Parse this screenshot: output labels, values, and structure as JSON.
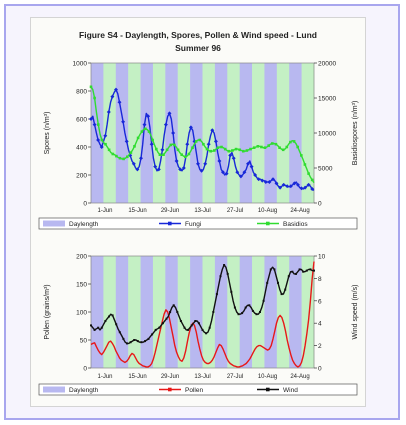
{
  "figure": {
    "title_line1": "Figure S4 - Daylength, Spores, Pollen & Wind speed - Lund",
    "title_line2": "Summer 96"
  },
  "colors": {
    "frame_border": "#a8a6ee",
    "band_purple": "#b8b8f0",
    "band_green": "#c4f0c4",
    "blue": "#1828d8",
    "green": "#30dc30",
    "red": "#e81818",
    "black": "#111111"
  },
  "chart_data": [
    {
      "type": "line",
      "title": "",
      "ylabel": "Spores (n/m³)",
      "y2label": "Basidiospores (n/m³)",
      "ylim": [
        0,
        1000
      ],
      "y2lim": [
        0,
        20000
      ],
      "yticks": [
        "0",
        "200",
        "400",
        "600",
        "800",
        "1000"
      ],
      "y2ticks": [
        "0",
        "5000",
        "10000",
        "15000",
        "20000"
      ],
      "xticks": [
        "1-Jun",
        "15-Jun",
        "29-Jun",
        "13-Jul",
        "27-Jul",
        "10-Aug",
        "24-Aug"
      ],
      "legend": [
        "Daylength",
        "Fungi",
        "Basidios"
      ],
      "legend_position": "bottom",
      "bands": [
        "purple",
        "green",
        "purple",
        "green",
        "purple",
        "green",
        "purple",
        "green",
        "purple",
        "green",
        "purple",
        "green",
        "purple",
        "green",
        "purple",
        "green",
        "purple",
        "green"
      ],
      "series": [
        {
          "name": "Fungi",
          "axis": "left",
          "color": "#1828d8",
          "marker": "diamond",
          "values": [
            600,
            620,
            560,
            500,
            450,
            420,
            400,
            440,
            480,
            560,
            650,
            720,
            760,
            790,
            810,
            780,
            720,
            650,
            580,
            500,
            440,
            380,
            340,
            300,
            280,
            250,
            240,
            260,
            320,
            420,
            560,
            640,
            620,
            540,
            420,
            320,
            260,
            230,
            240,
            300,
            380,
            480,
            560,
            620,
            640,
            600,
            500,
            380,
            300,
            260,
            240,
            230,
            250,
            320,
            420,
            500,
            540,
            520,
            440,
            360,
            280,
            240,
            230,
            240,
            280,
            340,
            420,
            480,
            520,
            500,
            440,
            360,
            300,
            240,
            220,
            200,
            210,
            260,
            340,
            360,
            320,
            260,
            220,
            200,
            190,
            200,
            220,
            240,
            280,
            300,
            260,
            220,
            200,
            180,
            170,
            170,
            160,
            160,
            150,
            150,
            150,
            160,
            170,
            160,
            140,
            120,
            110,
            120,
            130,
            125,
            120,
            115,
            120,
            130,
            140,
            150,
            130,
            110,
            105,
            100,
            110,
            120,
            130,
            120,
            100,
            90
          ]
        },
        {
          "name": "Basidios",
          "axis": "right",
          "color": "#30dc30",
          "marker": "square",
          "values": [
            16600,
            16200,
            15000,
            13000,
            11200,
            9800,
            9000,
            8600,
            8400,
            8000,
            7600,
            7200,
            7000,
            6900,
            6700,
            6500,
            6400,
            6300,
            6300,
            6400,
            6600,
            6900,
            7200,
            7600,
            8100,
            8700,
            9300,
            9800,
            10200,
            10500,
            10600,
            10500,
            10200,
            9700,
            9000,
            8300,
            7700,
            7200,
            6900,
            6800,
            6900,
            7200,
            7600,
            8000,
            8300,
            8400,
            8300,
            8000,
            7600,
            7200,
            6900,
            6700,
            6600,
            6700,
            7000,
            7400,
            7900,
            8400,
            8800,
            9000,
            9000,
            8800,
            8400,
            8000,
            7700,
            7500,
            7400,
            7400,
            7500,
            7700,
            7900,
            8000,
            8000,
            7900,
            7700,
            7500,
            7400,
            7400,
            7500,
            7600,
            7700,
            7700,
            7600,
            7500,
            7400,
            7400,
            7500,
            7600,
            7700,
            7800,
            7900,
            8000,
            8100,
            8100,
            8000,
            7900,
            7900,
            8000,
            8200,
            8400,
            8500,
            8500,
            8400,
            8200,
            7900,
            7700,
            7600,
            7700,
            8000,
            8400,
            8700,
            8900,
            8800,
            8500,
            8000,
            7400,
            6800,
            6200,
            5500,
            4900,
            4200,
            3700,
            3300,
            2900
          ]
        }
      ]
    },
    {
      "type": "line",
      "title": "",
      "ylabel": "Pollen (grains/m³)",
      "y2label": "Wind speed (m/s)",
      "ylim": [
        0,
        200
      ],
      "y2lim": [
        0,
        10
      ],
      "yticks": [
        "0",
        "50",
        "100",
        "150",
        "200"
      ],
      "y2ticks": [
        "0",
        "2",
        "4",
        "6",
        "8",
        "10"
      ],
      "xticks": [
        "1-Jun",
        "15-Jun",
        "29-Jun",
        "13-Jul",
        "27-Jul",
        "10-Aug",
        "24-Aug"
      ],
      "legend": [
        "Daylength",
        "Pollen",
        "Wind"
      ],
      "legend_position": "bottom",
      "series": [
        {
          "name": "Pollen",
          "axis": "left",
          "color": "#e81818",
          "values": [
            42,
            44,
            45,
            38,
            32,
            27,
            24,
            28,
            34,
            40,
            46,
            48,
            44,
            38,
            30,
            24,
            18,
            14,
            12,
            10,
            12,
            16,
            22,
            26,
            24,
            18,
            12,
            8,
            6,
            4,
            3,
            2,
            2,
            4,
            8,
            16,
            28,
            42,
            56,
            70,
            84,
            96,
            104,
            100,
            88,
            72,
            56,
            40,
            28,
            20,
            14,
            12,
            18,
            30,
            46,
            62,
            74,
            80,
            76,
            64,
            48,
            34,
            22,
            14,
            10,
            8,
            8,
            10,
            14,
            20,
            28,
            36,
            42,
            40,
            34,
            26,
            18,
            12,
            8,
            6,
            4,
            3,
            2,
            2,
            3,
            4,
            6,
            8,
            12,
            16,
            22,
            28,
            34,
            38,
            40,
            40,
            38,
            36,
            34,
            32,
            34,
            40,
            52,
            66,
            80,
            90,
            94,
            90,
            80,
            66,
            50,
            36,
            24,
            14,
            8,
            4,
            2,
            4,
            10,
            22,
            40,
            62,
            86,
            120,
            160,
            190
          ]
        },
        {
          "name": "Wind",
          "axis": "right",
          "color": "#111111",
          "marker": "small",
          "values": [
            3.8,
            3.6,
            3.4,
            3.5,
            3.6,
            3.4,
            3.6,
            3.9,
            4.2,
            4.4,
            4.6,
            4.8,
            4.7,
            4.3,
            3.9,
            3.5,
            3.2,
            2.9,
            2.6,
            2.3,
            2.2,
            2.2,
            2.3,
            2.4,
            2.5,
            2.5,
            2.4,
            2.3,
            2.3,
            2.3,
            2.4,
            2.5,
            2.6,
            2.8,
            3.0,
            3.2,
            3.4,
            3.5,
            3.6,
            3.8,
            4.0,
            4.2,
            4.4,
            4.6,
            5.0,
            5.4,
            5.6,
            5.4,
            5.0,
            4.6,
            4.2,
            3.9,
            3.6,
            3.4,
            3.4,
            3.6,
            3.8,
            4.0,
            4.2,
            4.2,
            4.0,
            3.7,
            3.4,
            3.2,
            3.1,
            3.2,
            3.6,
            4.2,
            5.0,
            5.8,
            6.6,
            7.4,
            8.2,
            8.8,
            9.2,
            9.0,
            8.4,
            7.6,
            6.8,
            6.0,
            5.4,
            5.0,
            4.8,
            4.8,
            4.9,
            5.1,
            5.4,
            5.6,
            5.6,
            5.4,
            5.1,
            4.9,
            4.8,
            4.8,
            5.0,
            5.4,
            6.0,
            6.8,
            7.6,
            8.2,
            8.8,
            9.0,
            8.8,
            8.2,
            7.6,
            7.0,
            6.6,
            6.6,
            7.0,
            7.6,
            8.2,
            8.6,
            8.6,
            8.4,
            8.4,
            8.6,
            8.8,
            8.8,
            8.6,
            8.6,
            8.7,
            8.8,
            8.8,
            8.7,
            8.7
          ]
        }
      ]
    }
  ]
}
